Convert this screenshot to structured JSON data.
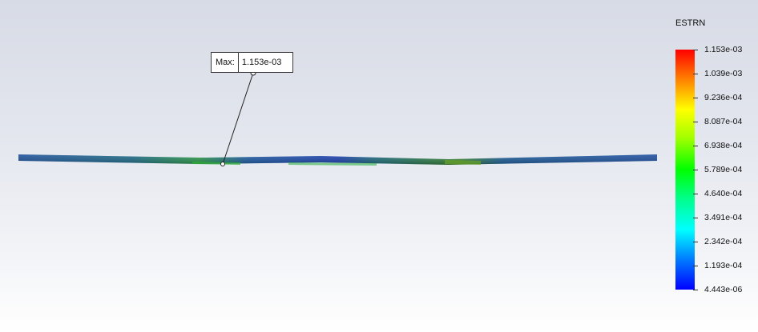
{
  "probe": {
    "label": "Max:",
    "value": "1.153e-03"
  },
  "legend": {
    "title": "ESTRN",
    "levels": [
      "1.153e-03",
      "1.039e-03",
      "9.236e-04",
      "8.087e-04",
      "6.938e-04",
      "5.789e-04",
      "4.640e-04",
      "3.491e-04",
      "2.342e-04",
      "1.193e-04",
      "4.443e-06"
    ]
  },
  "colors": {
    "max": "#ff0000",
    "min": "#0000ff",
    "beam_base": "#1f4fa8"
  }
}
